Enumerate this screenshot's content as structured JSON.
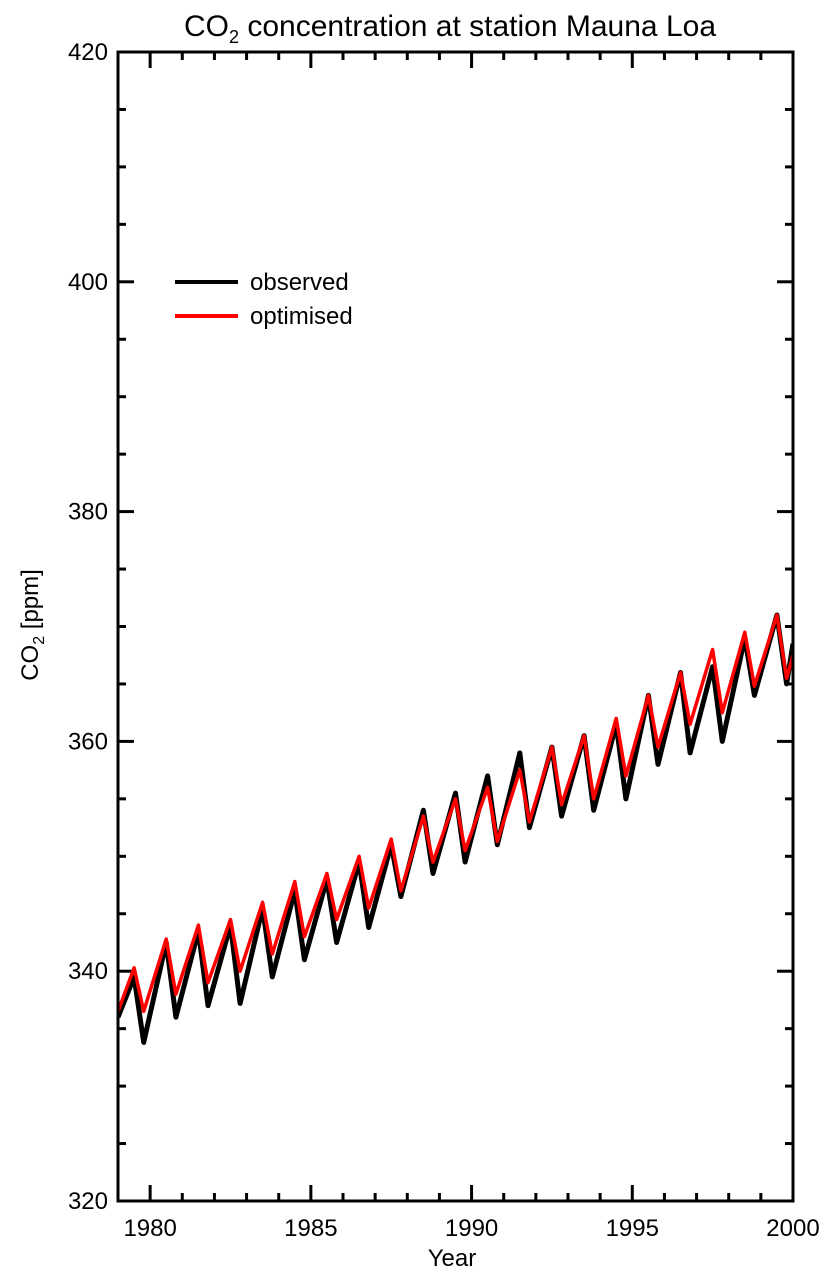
{
  "chart_data": {
    "type": "line",
    "title": {
      "prefix": "CO",
      "subscript": "2",
      "suffix": " concentration at station Mauna Loa"
    },
    "xlabel": "Year",
    "ylabel": {
      "prefix": "CO",
      "subscript": "2",
      "suffix": " [ppm]"
    },
    "xlim": [
      1979,
      2000
    ],
    "ylim": [
      320,
      420
    ],
    "xticks": [
      1980,
      1985,
      1990,
      1995,
      2000
    ],
    "yticks": [
      320,
      340,
      360,
      380,
      400,
      420
    ],
    "legend_position": "upper-left",
    "series": [
      {
        "name": "observed",
        "color": "#000000",
        "x": [
          1979.0,
          1979.5,
          1979.8,
          1980.5,
          1980.8,
          1981.5,
          1981.8,
          1982.5,
          1982.8,
          1983.5,
          1983.8,
          1984.5,
          1984.8,
          1985.5,
          1985.8,
          1986.5,
          1986.8,
          1987.5,
          1987.8,
          1988.5,
          1988.8,
          1989.5,
          1989.8,
          1990.5,
          1990.8,
          1991.5,
          1991.8,
          1992.5,
          1992.8,
          1993.5,
          1993.8,
          1994.5,
          1994.8,
          1995.5,
          1995.8,
          1996.5,
          1996.8,
          1997.5,
          1997.8,
          1998.5,
          1998.8,
          1999.5,
          1999.8,
          2000.0
        ],
        "values": [
          336.0,
          339.5,
          333.8,
          342.5,
          336.0,
          343.5,
          337.0,
          344.0,
          337.2,
          345.5,
          339.5,
          347.0,
          341.0,
          348.0,
          342.5,
          349.5,
          343.8,
          351.0,
          346.5,
          354.0,
          348.5,
          355.5,
          349.5,
          357.0,
          351.0,
          359.0,
          352.5,
          359.5,
          353.5,
          360.5,
          354.0,
          361.5,
          355.0,
          364.0,
          358.0,
          366.0,
          359.0,
          366.5,
          360.0,
          369.0,
          364.0,
          371.0,
          365.0,
          368.5
        ]
      },
      {
        "name": "optimised",
        "color": "#ff0000",
        "x": [
          1979.0,
          1979.5,
          1979.8,
          1980.5,
          1980.8,
          1981.5,
          1981.8,
          1982.5,
          1982.8,
          1983.5,
          1983.8,
          1984.5,
          1984.8,
          1985.5,
          1985.8,
          1986.5,
          1986.8,
          1987.5,
          1987.8,
          1988.5,
          1988.8,
          1989.5,
          1989.8,
          1990.5,
          1990.8,
          1991.5,
          1991.8,
          1992.5,
          1992.8,
          1993.5,
          1993.8,
          1994.5,
          1994.8,
          1995.5,
          1995.8,
          1996.5,
          1996.8,
          1997.5,
          1997.8,
          1998.5,
          1998.8,
          1999.5,
          1999.8,
          2000.0
        ],
        "values": [
          336.5,
          340.3,
          336.5,
          342.8,
          338.0,
          344.0,
          339.0,
          344.5,
          340.0,
          346.0,
          341.5,
          347.8,
          343.0,
          348.5,
          344.5,
          350.0,
          345.5,
          351.5,
          347.0,
          353.5,
          349.5,
          355.0,
          350.5,
          356.0,
          351.3,
          357.5,
          353.0,
          359.5,
          354.5,
          360.5,
          355.0,
          362.0,
          357.0,
          364.0,
          359.5,
          366.0,
          361.5,
          368.0,
          362.5,
          369.5,
          364.8,
          371.0,
          365.5,
          367.5
        ]
      }
    ]
  }
}
